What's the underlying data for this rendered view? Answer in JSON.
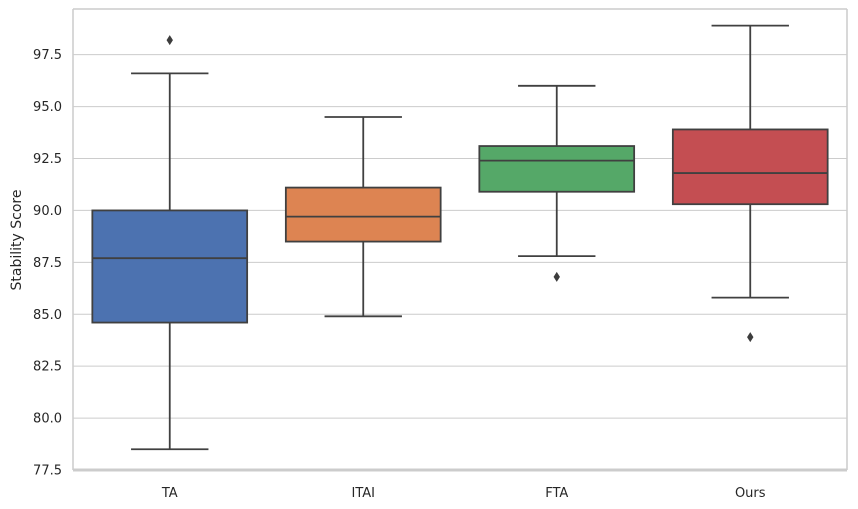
{
  "chart_data": {
    "type": "box",
    "title": "",
    "xlabel": "",
    "ylabel": "Stability Score",
    "ylim": [
      77.5,
      99.7
    ],
    "yticks": [
      77.5,
      80.0,
      82.5,
      85.0,
      87.5,
      90.0,
      92.5,
      95.0,
      97.5
    ],
    "ytick_labels": [
      "77.5",
      "80.0",
      "82.5",
      "85.0",
      "87.5",
      "90.0",
      "92.5",
      "95.0",
      "97.5"
    ],
    "grid": "horizontal",
    "categories": [
      "TA",
      "ITAI",
      "FTA",
      "Ours"
    ],
    "series": [
      {
        "name": "TA",
        "color": "#4c72b0",
        "whisker_low": 78.5,
        "q1": 84.6,
        "median": 87.7,
        "q3": 90.0,
        "whisker_high": 96.6,
        "outliers": [
          98.2
        ]
      },
      {
        "name": "ITAI",
        "color": "#dd8452",
        "whisker_low": 84.9,
        "q1": 88.5,
        "median": 89.7,
        "q3": 91.1,
        "whisker_high": 94.5,
        "outliers": []
      },
      {
        "name": "FTA",
        "color": "#55a868",
        "whisker_low": 87.8,
        "q1": 90.9,
        "median": 92.4,
        "q3": 93.1,
        "whisker_high": 96.0,
        "outliers": [
          86.8
        ]
      },
      {
        "name": "Ours",
        "color": "#c44e52",
        "whisker_low": 85.8,
        "q1": 90.3,
        "median": 91.8,
        "q3": 93.9,
        "whisker_high": 98.9,
        "outliers": [
          83.9
        ]
      }
    ]
  }
}
